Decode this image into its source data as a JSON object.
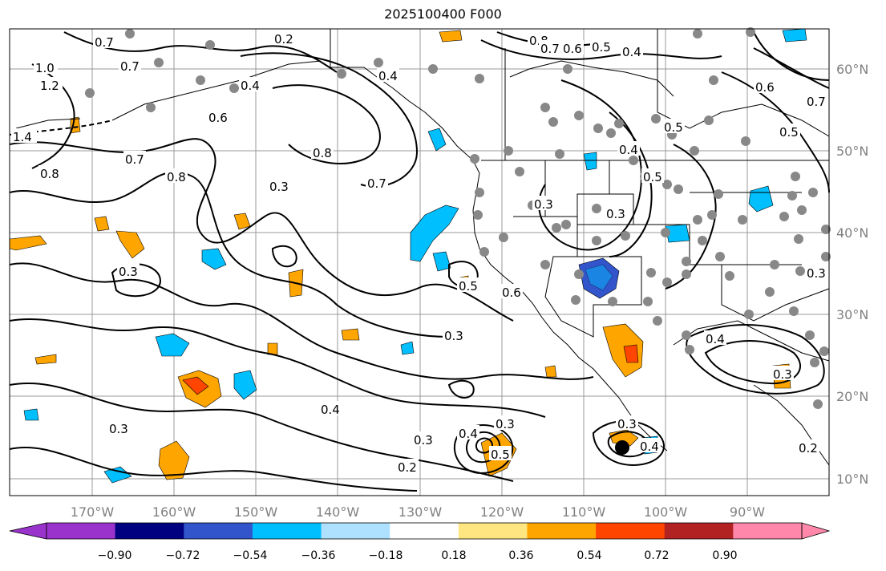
{
  "map": {
    "title": "2025100400 F000",
    "lon_ticks": [
      "170°W",
      "160°W",
      "150°W",
      "140°W",
      "130°W",
      "120°W",
      "110°W",
      "100°W",
      "90°W"
    ],
    "lat_ticks": [
      "60°N",
      "50°N",
      "40°N",
      "30°N",
      "20°N",
      "10°N"
    ],
    "contour_labels": [
      "1.0",
      "1.2",
      "1.4",
      "0.7",
      "0.8",
      "0.4",
      "0.6",
      "0.8",
      "0.2",
      "0.4",
      "0.8",
      "0.7",
      "0.3",
      "0.7",
      "0.3",
      "0.3",
      "0.5",
      "0.6",
      "0.3",
      "0.4",
      "0.3",
      "0.3",
      "0.2",
      "0.4",
      "0.3",
      "0.5",
      "0.3",
      "0.4",
      "0.8",
      "0.7",
      "0.6",
      "0.5",
      "0.4",
      "0.5",
      "0.5",
      "0.3",
      "0.4",
      "0.6",
      "0.7",
      "0.5",
      "0.4",
      "0.3",
      "0.2",
      "0.3",
      "0.7"
    ],
    "colorbar": {
      "tick_labels": [
        "−0.90",
        "−0.72",
        "−0.54",
        "−0.36",
        "−0.18",
        "0.18",
        "0.36",
        "0.54",
        "0.72",
        "0.90"
      ],
      "colors": [
        "#9933cc",
        "#000080",
        "#3355cc",
        "#00bfff",
        "#aee0ff",
        "#ffffff",
        "#ffe680",
        "#ffa500",
        "#ff4500",
        "#b22222",
        "#ff88aa"
      ]
    }
  }
}
